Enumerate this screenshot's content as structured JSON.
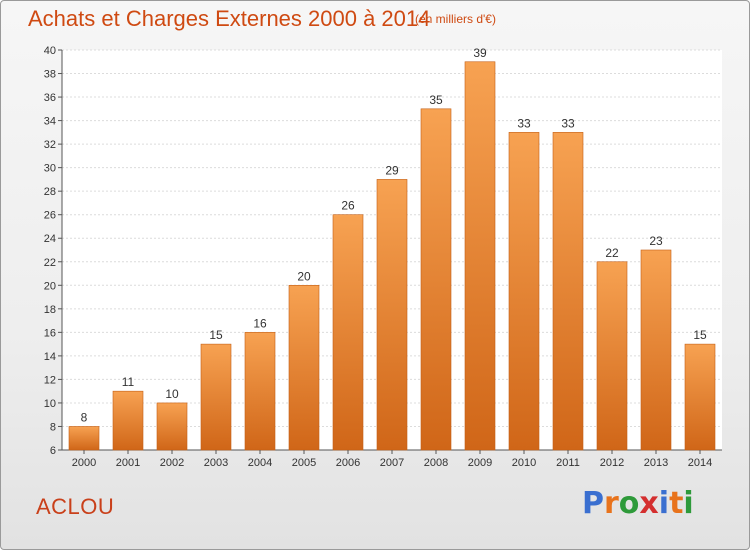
{
  "header": {
    "title": "Achats et Charges Externes 2000 à 2014",
    "unit_note": "(en milliers d'€)"
  },
  "footer": {
    "commune_name": "ACLOU",
    "brand_letters": [
      "P",
      "r",
      "o",
      "x",
      "i",
      "t",
      "i"
    ],
    "brand_colors": [
      "#3a6fd0",
      "#e8731c",
      "#2e9a3a",
      "#d42f2f",
      "#3a6fd0",
      "#e8731c",
      "#2e9a3a"
    ]
  },
  "colors": {
    "bar_top": "#f7a252",
    "bar_bottom": "#d06618",
    "title": "#cf4a12"
  },
  "chart_data": {
    "type": "bar",
    "title": "Achats et Charges Externes 2000 à 2014",
    "subtitle": "(en milliers d'€)",
    "categories": [
      "2000",
      "2001",
      "2002",
      "2003",
      "2004",
      "2005",
      "2006",
      "2007",
      "2008",
      "2009",
      "2010",
      "2011",
      "2012",
      "2013",
      "2014"
    ],
    "values": [
      8,
      11,
      10,
      15,
      16,
      20,
      26,
      29,
      35,
      39,
      33,
      33,
      22,
      23,
      15
    ],
    "ylim": [
      6,
      40
    ],
    "yticks": [
      6,
      8,
      10,
      12,
      14,
      16,
      18,
      20,
      22,
      24,
      26,
      28,
      30,
      32,
      34,
      36,
      38,
      40
    ],
    "grid": true,
    "xlabel": "",
    "ylabel": ""
  }
}
